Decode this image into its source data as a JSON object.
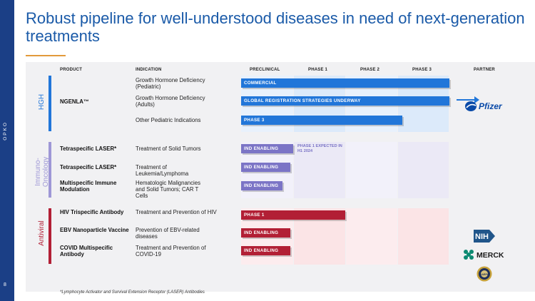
{
  "sidebar": {
    "brand": "OPKO",
    "page_number": "8"
  },
  "title": "Robust pipeline for well-understood diseases in need of next-generation treatments",
  "headers": {
    "product": "PRODUCT",
    "indication": "INDICATION",
    "preclinical": "PRECLINICAL",
    "phase1": "PHASE 1",
    "phase2": "PHASE 2",
    "phase3": "PHASE 3",
    "partner": "PARTNER"
  },
  "groups": [
    {
      "label": "HGH",
      "color": "#2176d9"
    },
    {
      "label": "Immuno-\nOncology",
      "color": "#9e97d6"
    },
    {
      "label": "Antiviral",
      "color": "#b21f35"
    }
  ],
  "rows": [
    {
      "product": "NGENLA™",
      "indication": "Growth Hormone Deficiency (Pediatric)",
      "bar_label": "COMMERCIAL",
      "stage": 4.0
    },
    {
      "product": "",
      "indication": "Growth Hormone Deficiency (Adults)",
      "bar_label": "GLOBAL REGISTRATION STRATEGIES UNDERWAY",
      "stage": 4.0
    },
    {
      "product": "",
      "indication": "Other Pediatric Indications",
      "bar_label": "PHASE 3",
      "stage": 3.1
    },
    {
      "product": "Tetraspecific LASER*",
      "indication": "Treatment of Solid Tumors",
      "bar_label": "IND ENABLING",
      "stage": 1.0,
      "note": "PHASE 1 EXPECTED IN H1 2024"
    },
    {
      "product": "Tetraspecific LASER*",
      "indication": "Treatment of Leukemia/Lymphoma",
      "bar_label": "IND ENABLING",
      "stage": 0.95
    },
    {
      "product": "Multispecific Immune Modulation",
      "indication": "Hematologic Malignancies and Solid Tumors; CAR T Cells",
      "bar_label": "IND ENABLING",
      "stage": 0.8
    },
    {
      "product": "HIV Trispecific Antibody",
      "indication": "Treatment and Prevention of HIV",
      "bar_label": "PHASE 1",
      "stage": 2.0
    },
    {
      "product": "EBV Nanoparticle Vaccine",
      "indication": "Prevention of EBV-related diseases",
      "bar_label": "IND ENABLING",
      "stage": 0.95
    },
    {
      "product": "COVID Multispecific Antibody",
      "indication": "Treatment and Prevention of COVID-19",
      "bar_label": "IND ENABLING",
      "stage": 0.95
    }
  ],
  "partners": {
    "pfizer": "Pfizer",
    "nih": "NIH",
    "merck": "MERCK",
    "darpa": "DARPA"
  },
  "footnote": "*Lymphocyte Activator and Survival Extension Receptor (LASER) Antibodies",
  "colors": {
    "hgh": "#2176d9",
    "immuno": "#7b74c6",
    "antiviral": "#b21f35",
    "title": "#1a5aa8",
    "sidebar": "#1b3f86"
  }
}
